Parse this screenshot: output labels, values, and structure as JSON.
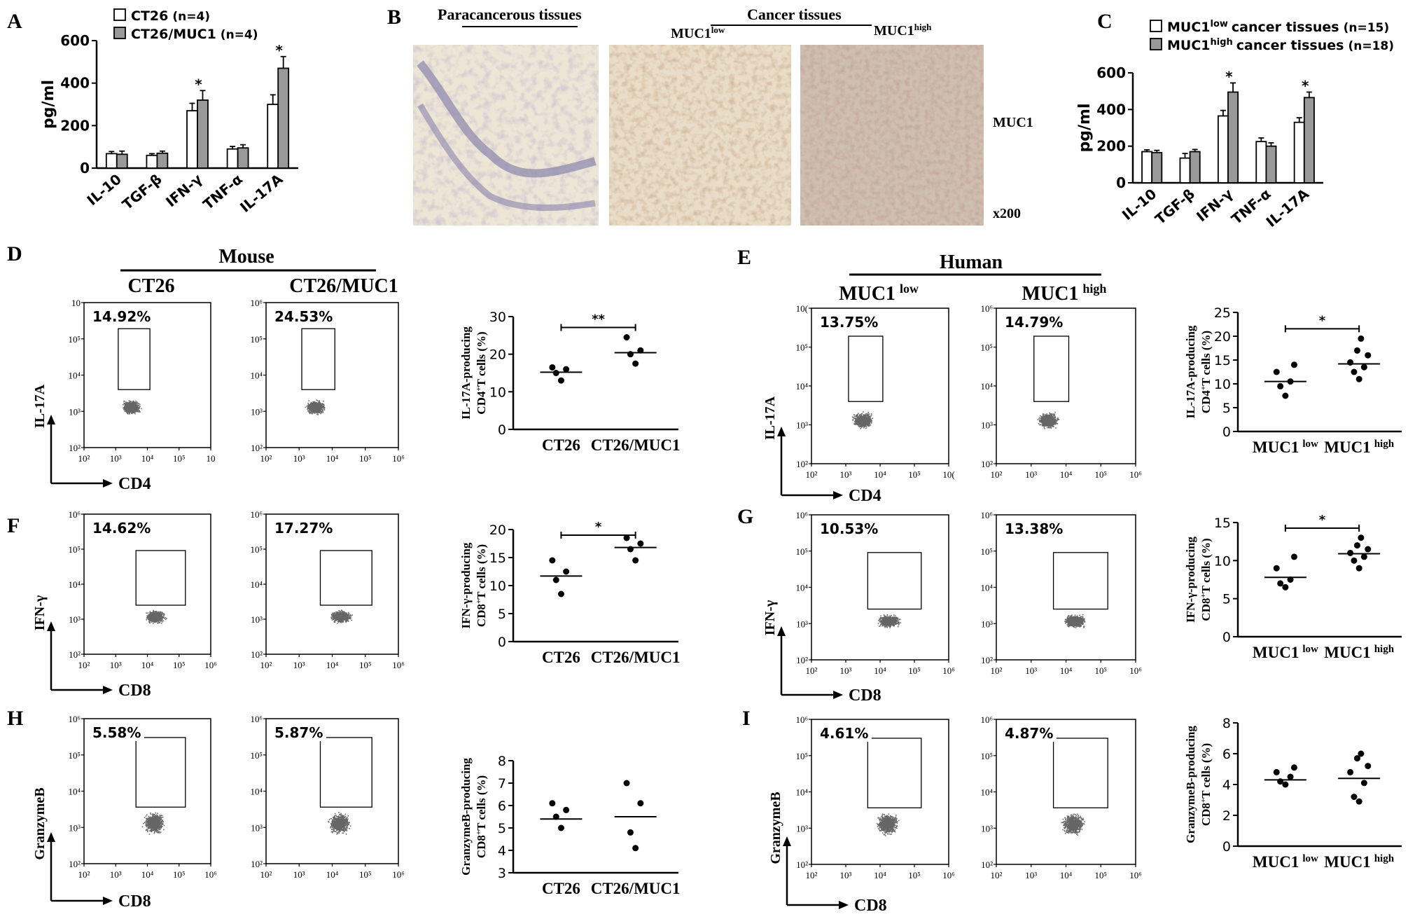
{
  "figure": {
    "panel_letters": [
      "A",
      "B",
      "C",
      "D",
      "E",
      "F",
      "G",
      "H",
      "I"
    ],
    "group_mouse": "Mouse",
    "group_human": "Human",
    "micro": {
      "paracancerous": "Paracancerous tissues",
      "cancer": "Cancer tissues",
      "low": "MUC1",
      "low_sup": "low",
      "high": "MUC1",
      "high_sup": "high",
      "stain": "MUC1",
      "mag": "x200"
    }
  },
  "chart_data": [
    {
      "id": "A",
      "type": "bar",
      "ylabel": "pg/ml",
      "ylim": [
        0,
        600
      ],
      "yticks": [
        0,
        200,
        400,
        600
      ],
      "categories": [
        "IL-10",
        "TGF-β",
        "IFN-γ",
        "TNF-α",
        "IL-17A"
      ],
      "series": [
        {
          "name": "CT26",
          "n_label": "(n=4)",
          "color": "#ffffff",
          "values": [
            68,
            60,
            270,
            90,
            300
          ],
          "errors": [
            10,
            8,
            35,
            12,
            45
          ]
        },
        {
          "name": "CT26/MUC1",
          "n_label": "(n=4)",
          "color": "#999999",
          "values": [
            65,
            70,
            320,
            95,
            470
          ],
          "errors": [
            15,
            10,
            45,
            15,
            55
          ]
        }
      ],
      "significance": [
        "",
        "",
        "*",
        "",
        "*"
      ]
    },
    {
      "id": "C",
      "type": "bar",
      "ylabel": "pg/ml",
      "ylim": [
        0,
        600
      ],
      "yticks": [
        0,
        200,
        400,
        600
      ],
      "categories": [
        "IL-10",
        "TGF-β",
        "IFN-γ",
        "TNF-α",
        "IL-17A"
      ],
      "series": [
        {
          "name": "MUC1",
          "sup": "low",
          "suffix": "cancer tissues",
          "n_label": "(n=15)",
          "color": "#ffffff",
          "values": [
            170,
            135,
            365,
            225,
            330
          ],
          "errors": [
            10,
            25,
            30,
            20,
            25
          ]
        },
        {
          "name": "MUC1",
          "sup": "high",
          "suffix": "cancer tissues",
          "n_label": "(n=18)",
          "color": "#999999",
          "values": [
            165,
            170,
            495,
            200,
            465
          ],
          "errors": [
            12,
            12,
            50,
            18,
            30
          ]
        }
      ],
      "significance": [
        "",
        "",
        "*",
        "",
        "*"
      ]
    },
    {
      "id": "D",
      "type": "scatter",
      "ylabel_1": "IL-17A-producing",
      "ylabel_2": "CD4",
      "ylabel_2_sup": "+",
      "ylabel_2_rest": "T cells (%)",
      "ylim": [
        0,
        30
      ],
      "yticks": [
        0,
        10,
        20,
        30
      ],
      "groups": [
        {
          "label": "CT26",
          "values": [
            13,
            15,
            16,
            16.5
          ],
          "mean": 15.2
        },
        {
          "label": "CT26/MUC1",
          "values": [
            17.5,
            20,
            21,
            24.5
          ],
          "mean": 20.4
        }
      ],
      "significance": "**"
    },
    {
      "id": "E",
      "type": "scatter",
      "ylabel_1": "IL-17A-producing",
      "ylabel_2": "CD4",
      "ylabel_2_sup": "+",
      "ylabel_2_rest": "T cells (%)",
      "ylim": [
        0,
        25
      ],
      "yticks": [
        0,
        5,
        10,
        15,
        20,
        25
      ],
      "groups": [
        {
          "label": "MUC1",
          "sup": "low",
          "values": [
            7.5,
            9.5,
            10.5,
            12.5,
            14
          ],
          "mean": 10.5
        },
        {
          "label": "MUC1",
          "sup": "high",
          "values": [
            11,
            12.5,
            13.5,
            14.5,
            16,
            17,
            19.5
          ],
          "mean": 14.2
        }
      ],
      "significance": "*"
    },
    {
      "id": "F",
      "type": "scatter",
      "ylabel_1": "IFN-γ-producing",
      "ylabel_2": "CD8",
      "ylabel_2_sup": "+",
      "ylabel_2_rest": "T cells (%)",
      "ylim": [
        0,
        20
      ],
      "yticks": [
        0,
        5,
        10,
        15,
        20
      ],
      "groups": [
        {
          "label": "CT26",
          "values": [
            8.5,
            11,
            12.5,
            14.5
          ],
          "mean": 11.7
        },
        {
          "label": "CT26/MUC1",
          "values": [
            14.5,
            16.5,
            17.5,
            18.5
          ],
          "mean": 16.8
        }
      ],
      "significance": "*"
    },
    {
      "id": "G",
      "type": "scatter",
      "ylabel_1": "IFN-γ-producing",
      "ylabel_2": "CD8",
      "ylabel_2_sup": "+",
      "ylabel_2_rest": "T cells (%)",
      "ylim": [
        0,
        15
      ],
      "yticks": [
        0,
        5,
        10,
        15
      ],
      "groups": [
        {
          "label": "MUC1",
          "sup": "low",
          "values": [
            6.5,
            7,
            7.5,
            9,
            10.5
          ],
          "mean": 7.8
        },
        {
          "label": "MUC1",
          "sup": "high",
          "values": [
            9,
            10,
            10.5,
            11,
            11.5,
            12,
            13
          ],
          "mean": 10.9
        }
      ],
      "significance": "*"
    },
    {
      "id": "H",
      "type": "scatter",
      "ylabel_1": "GranzymeB-producing",
      "ylabel_2": "CD8",
      "ylabel_2_sup": "+",
      "ylabel_2_rest": "T cells (%)",
      "ylim": [
        3,
        8
      ],
      "yticks": [
        3,
        4,
        5,
        6,
        7,
        8
      ],
      "groups": [
        {
          "label": "CT26",
          "values": [
            5,
            5.5,
            5.8,
            6.1
          ],
          "mean": 5.4
        },
        {
          "label": "CT26/MUC1",
          "values": [
            4.1,
            4.8,
            6.1,
            7
          ],
          "mean": 5.5
        }
      ],
      "significance": ""
    },
    {
      "id": "I",
      "type": "scatter",
      "ylabel_1": "GranzymeB-producing",
      "ylabel_2": "CD8",
      "ylabel_2_sup": "+",
      "ylabel_2_rest": "T cells (%)",
      "ylim": [
        0,
        8
      ],
      "yticks": [
        0,
        2,
        4,
        6,
        8
      ],
      "groups": [
        {
          "label": "MUC1",
          "sup": "low",
          "values": [
            4,
            4.2,
            4.5,
            4.8,
            5.1
          ],
          "mean": 4.3
        },
        {
          "label": "MUC1",
          "sup": "high",
          "values": [
            2.9,
            3.2,
            4.1,
            4.8,
            5.2,
            5.7,
            6
          ],
          "mean": 4.4
        }
      ],
      "significance": ""
    }
  ],
  "flow_plots": {
    "tick_labels": [
      "10²",
      "10³",
      "10⁴",
      "10⁵",
      "10⁶"
    ],
    "tick_labels_cut": [
      "10²",
      "10³",
      "10⁴",
      "10⁵",
      "10"
    ],
    "tick_labels_cut2": [
      "10²",
      "10³",
      "10⁴",
      "10⁵",
      "10("
    ],
    "column_titles": {
      "D1": "CT26",
      "D2": "CT26/MUC1",
      "E1": "MUC1",
      "E1_sup": "low",
      "E2": "MUC1",
      "E2_sup": "high"
    },
    "rows": [
      {
        "id": "D",
        "ylabel": "IL-17A",
        "xlabel": "CD4",
        "left_pct": "14.92%",
        "right_pct": "24.53%"
      },
      {
        "id": "E",
        "ylabel": "IL-17A",
        "xlabel": "CD4",
        "left_pct": "13.75%",
        "right_pct": "14.79%"
      },
      {
        "id": "F",
        "ylabel": "IFN-γ",
        "xlabel": "CD8",
        "left_pct": "14.62%",
        "right_pct": "17.27%"
      },
      {
        "id": "G",
        "ylabel": "IFN-γ",
        "xlabel": "CD8",
        "left_pct": "10.53%",
        "right_pct": "13.38%"
      },
      {
        "id": "H",
        "ylabel": "GranzymeB",
        "xlabel": "CD8",
        "left_pct": "5.58%",
        "right_pct": "5.87%"
      },
      {
        "id": "I",
        "ylabel": "GranzymeB",
        "xlabel": "CD8",
        "left_pct": "4.61%",
        "right_pct": "4.87%"
      }
    ]
  }
}
